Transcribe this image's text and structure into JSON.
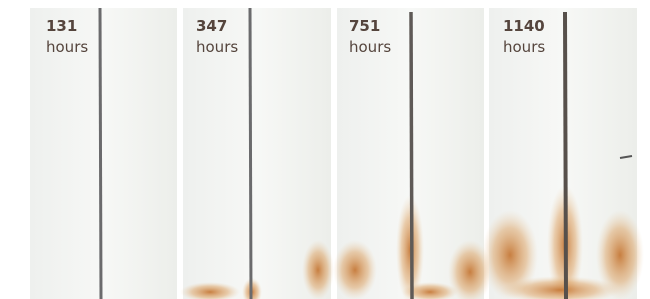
{
  "panels": [
    {
      "value": "131",
      "unit": "hours"
    },
    {
      "value": "347",
      "unit": "hours"
    },
    {
      "value": "751",
      "unit": "hours"
    },
    {
      "value": "1140",
      "unit": "hours"
    }
  ]
}
